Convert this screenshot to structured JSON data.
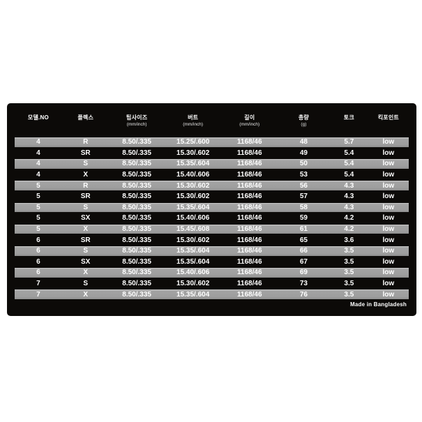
{
  "chart_data": {
    "type": "table",
    "title": "",
    "columns": [
      {
        "label": "모델.NO",
        "sub": ""
      },
      {
        "label": "플렉스",
        "sub": ""
      },
      {
        "label": "팁사이즈",
        "sub": "(mm/inch)"
      },
      {
        "label": "버트",
        "sub": "(mm/inch)"
      },
      {
        "label": "길이",
        "sub": "(mm/inch)"
      },
      {
        "label": "총량",
        "sub": "(g)"
      },
      {
        "label": "토크",
        "sub": ""
      },
      {
        "label": "킥포인트",
        "sub": ""
      }
    ],
    "rows": [
      [
        "4",
        "R",
        "8.50/.335",
        "15.25/.600",
        "1168/46",
        "48",
        "5.7",
        "low"
      ],
      [
        "4",
        "SR",
        "8.50/.335",
        "15.30/.602",
        "1168/46",
        "49",
        "5.4",
        "low"
      ],
      [
        "4",
        "S",
        "8.50/.335",
        "15.35/.604",
        "1168/46",
        "50",
        "5.4",
        "low"
      ],
      [
        "4",
        "X",
        "8.50/.335",
        "15.40/.606",
        "1168/46",
        "53",
        "5.4",
        "low"
      ],
      [
        "5",
        "R",
        "8.50/.335",
        "15.30/.602",
        "1168/46",
        "56",
        "4.3",
        "low"
      ],
      [
        "5",
        "SR",
        "8.50/.335",
        "15.30/.602",
        "1168/46",
        "57",
        "4.3",
        "low"
      ],
      [
        "5",
        "S",
        "8.50/.335",
        "15.35/.604",
        "1168/46",
        "58",
        "4.3",
        "low"
      ],
      [
        "5",
        "SX",
        "8.50/.335",
        "15.40/.606",
        "1168/46",
        "59",
        "4.2",
        "low"
      ],
      [
        "5",
        "X",
        "8.50/.335",
        "15.45/.608",
        "1168/46",
        "61",
        "4.2",
        "low"
      ],
      [
        "6",
        "SR",
        "8.50/.335",
        "15.30/.602",
        "1168/46",
        "65",
        "3.6",
        "low"
      ],
      [
        "6",
        "S",
        "8.50/.335",
        "15.35/.604",
        "1168/46",
        "66",
        "3.5",
        "low"
      ],
      [
        "6",
        "SX",
        "8.50/.335",
        "15.35/.604",
        "1168/46",
        "67",
        "3.5",
        "low"
      ],
      [
        "6",
        "X",
        "8.50/.335",
        "15.40/.606",
        "1168/46",
        "69",
        "3.5",
        "low"
      ],
      [
        "7",
        "S",
        "8.50/.335",
        "15.30/.602",
        "1168/46",
        "73",
        "3.5",
        "low"
      ],
      [
        "7",
        "X",
        "8.50/.335",
        "15.35/.604",
        "1168/46",
        "76",
        "3.5",
        "low"
      ]
    ],
    "layout": {
      "row_striping": "odd rows gray, even rows black",
      "grid": false
    }
  },
  "footer": {
    "made_in": "Made in Bangladesh"
  },
  "colors": {
    "page_bg": "#ffffff",
    "panel_bg": "#0c0a08",
    "row_gray": "#a0a0a0",
    "row_dark": "#0c0a08",
    "text": "#ffffff"
  }
}
